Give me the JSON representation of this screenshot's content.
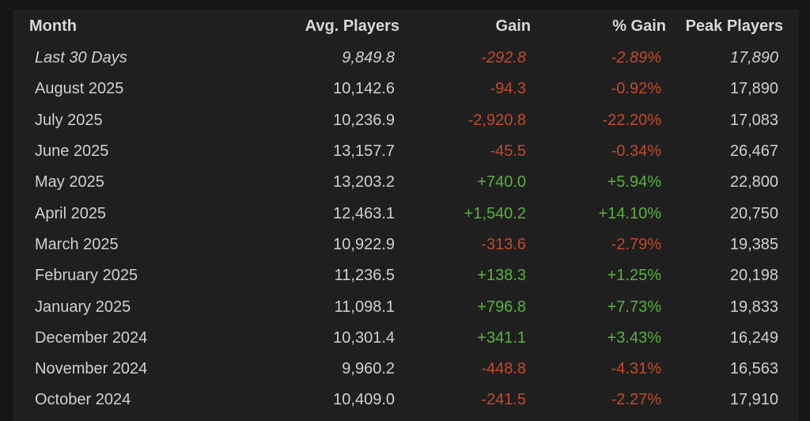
{
  "table": {
    "headers": {
      "month": "Month",
      "avg": "Avg. Players",
      "gain": "Gain",
      "pct": "% Gain",
      "peak": "Peak Players"
    },
    "rows": [
      {
        "month": "Last 30 Days",
        "avg": "9,849.8",
        "gain": "-292.8",
        "pct": "-2.89%",
        "peak": "17,890",
        "trend": "neg"
      },
      {
        "month": "August 2025",
        "avg": "10,142.6",
        "gain": "-94.3",
        "pct": "-0.92%",
        "peak": "17,890",
        "trend": "neg"
      },
      {
        "month": "July 2025",
        "avg": "10,236.9",
        "gain": "-2,920.8",
        "pct": "-22.20%",
        "peak": "17,083",
        "trend": "neg"
      },
      {
        "month": "June 2025",
        "avg": "13,157.7",
        "gain": "-45.5",
        "pct": "-0.34%",
        "peak": "26,467",
        "trend": "neg"
      },
      {
        "month": "May 2025",
        "avg": "13,203.2",
        "gain": "+740.0",
        "pct": "+5.94%",
        "peak": "22,800",
        "trend": "pos"
      },
      {
        "month": "April 2025",
        "avg": "12,463.1",
        "gain": "+1,540.2",
        "pct": "+14.10%",
        "peak": "20,750",
        "trend": "pos"
      },
      {
        "month": "March 2025",
        "avg": "10,922.9",
        "gain": "-313.6",
        "pct": "-2.79%",
        "peak": "19,385",
        "trend": "neg"
      },
      {
        "month": "February 2025",
        "avg": "11,236.5",
        "gain": "+138.3",
        "pct": "+1.25%",
        "peak": "20,198",
        "trend": "pos"
      },
      {
        "month": "January 2025",
        "avg": "11,098.1",
        "gain": "+796.8",
        "pct": "+7.73%",
        "peak": "19,833",
        "trend": "pos"
      },
      {
        "month": "December 2024",
        "avg": "10,301.4",
        "gain": "+341.1",
        "pct": "+3.43%",
        "peak": "16,249",
        "trend": "pos"
      },
      {
        "month": "November 2024",
        "avg": "9,960.2",
        "gain": "-448.8",
        "pct": "-4.31%",
        "peak": "16,563",
        "trend": "neg"
      },
      {
        "month": "October 2024",
        "avg": "10,409.0",
        "gain": "-241.5",
        "pct": "-2.27%",
        "peak": "17,910",
        "trend": "neg"
      }
    ]
  },
  "colors": {
    "negative": "#c14a2c",
    "positive": "#58b23a",
    "background": "#1f1f1f"
  }
}
